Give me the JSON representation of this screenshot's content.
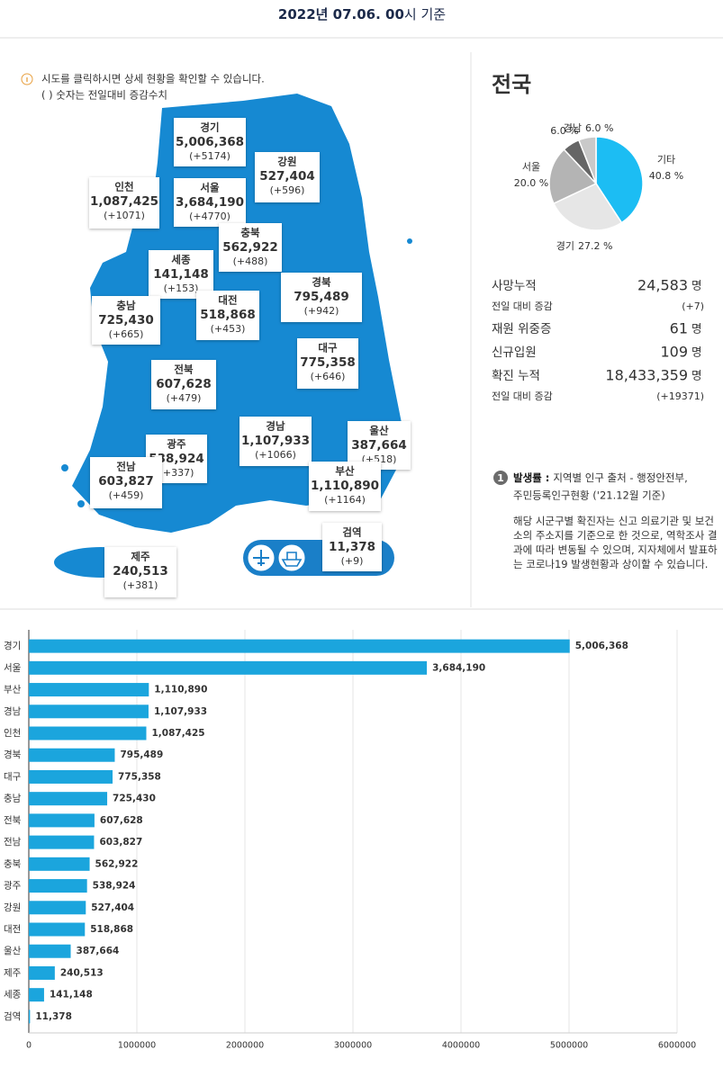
{
  "header": {
    "date": "2022년 07.06. 00",
    "suffix": "시 기준"
  },
  "info": {
    "line1": "시도를 클릭하시면 상세 현황을 확인할 수 있습니다.",
    "line2": "( ) 숫자는 전일대비 증감수치"
  },
  "map": {
    "regions": [
      {
        "name": "경기",
        "count": "5,006,368",
        "change": "(+5174)"
      },
      {
        "name": "강원",
        "count": "527,404",
        "change": "(+596)"
      },
      {
        "name": "인천",
        "count": "1,087,425",
        "change": "(+1071)"
      },
      {
        "name": "서울",
        "count": "3,684,190",
        "change": "(+4770)"
      },
      {
        "name": "충북",
        "count": "562,922",
        "change": "(+488)"
      },
      {
        "name": "세종",
        "count": "141,148",
        "change": "(+153)"
      },
      {
        "name": "경북",
        "count": "795,489",
        "change": "(+942)"
      },
      {
        "name": "충남",
        "count": "725,430",
        "change": "(+665)"
      },
      {
        "name": "대전",
        "count": "518,868",
        "change": "(+453)"
      },
      {
        "name": "대구",
        "count": "775,358",
        "change": "(+646)"
      },
      {
        "name": "전북",
        "count": "607,628",
        "change": "(+479)"
      },
      {
        "name": "경남",
        "count": "1,107,933",
        "change": "(+1066)"
      },
      {
        "name": "울산",
        "count": "387,664",
        "change": "(+518)"
      },
      {
        "name": "광주",
        "count": "538,924",
        "change": "(+337)"
      },
      {
        "name": "전남",
        "count": "603,827",
        "change": "(+459)"
      },
      {
        "name": "부산",
        "count": "1,110,890",
        "change": "(+1164)"
      },
      {
        "name": "검역",
        "count": "11,378",
        "change": "(+9)"
      },
      {
        "name": "제주",
        "count": "240,513",
        "change": "(+381)"
      }
    ]
  },
  "summary": {
    "title": "전국",
    "rows": [
      {
        "label": "사망누적",
        "value": "24,583",
        "unit": "명",
        "sub_label": "전일 대비 증감",
        "sub_value": "(+7)"
      },
      {
        "label": "재원 위중증",
        "value": "61",
        "unit": "명"
      },
      {
        "label": "신규입원",
        "value": "109",
        "unit": "명"
      },
      {
        "label": "확진 누적",
        "value": "18,433,359",
        "unit": "명",
        "sub_label": "전일 대비 증감",
        "sub_value": "(+19371)"
      }
    ]
  },
  "notes": {
    "badge": "1",
    "heading": "발생률 :",
    "source_line1": "지역별 인구 출처 - 행정안전부,",
    "source_line2": "주민등록인구현황 ('21.12월 기준)",
    "paragraph": "해당 시군구별 확진자는 신고 의료기관 및 보건소의 주소지를 기준으로 한 것으로, 역학조사 결과에 따라 변동될 수 있으며, 지자체에서 발표하는 코로나19 발생현황과 상이할 수 있습니다."
  },
  "chart_data": [
    {
      "type": "pie",
      "categories": [
        "기타",
        "경기",
        "서울",
        null,
        "경남"
      ],
      "values": [
        40.8,
        27.2,
        20.0,
        6.0,
        6.0
      ],
      "value_labels": [
        "40.8 %",
        "27.2 %",
        "20.0 %",
        "6.0 %",
        "6.0 %"
      ],
      "colors": [
        "#1cbdf3",
        "#e6e6e6",
        "#b4b4b4",
        "#666666",
        "#c9c9c9"
      ]
    },
    {
      "type": "bar",
      "orientation": "horizontal",
      "categories": [
        "경기",
        "서울",
        "부산",
        "경남",
        "인천",
        "경북",
        "대구",
        "충남",
        "전북",
        "전남",
        "충북",
        "광주",
        "강원",
        "대전",
        "울산",
        "제주",
        "세종",
        "검역"
      ],
      "values": [
        5006368,
        3684190,
        1110890,
        1107933,
        1087425,
        795489,
        775358,
        725430,
        607628,
        603827,
        562922,
        538924,
        527404,
        518868,
        387664,
        240513,
        141148,
        11378
      ],
      "value_labels": [
        "5,006,368",
        "3,684,190",
        "1,110,890",
        "1,107,933",
        "1,087,425",
        "795,489",
        "775,358",
        "725,430",
        "607,628",
        "603,827",
        "562,922",
        "538,924",
        "527,404",
        "518,868",
        "387,664",
        "240,513",
        "141,148",
        "11,378"
      ],
      "color": "#1ba5dd",
      "xlim": [
        0,
        6000000
      ],
      "xticks": [
        0,
        1000000,
        2000000,
        3000000,
        4000000,
        5000000,
        6000000
      ],
      "grid": true
    }
  ]
}
